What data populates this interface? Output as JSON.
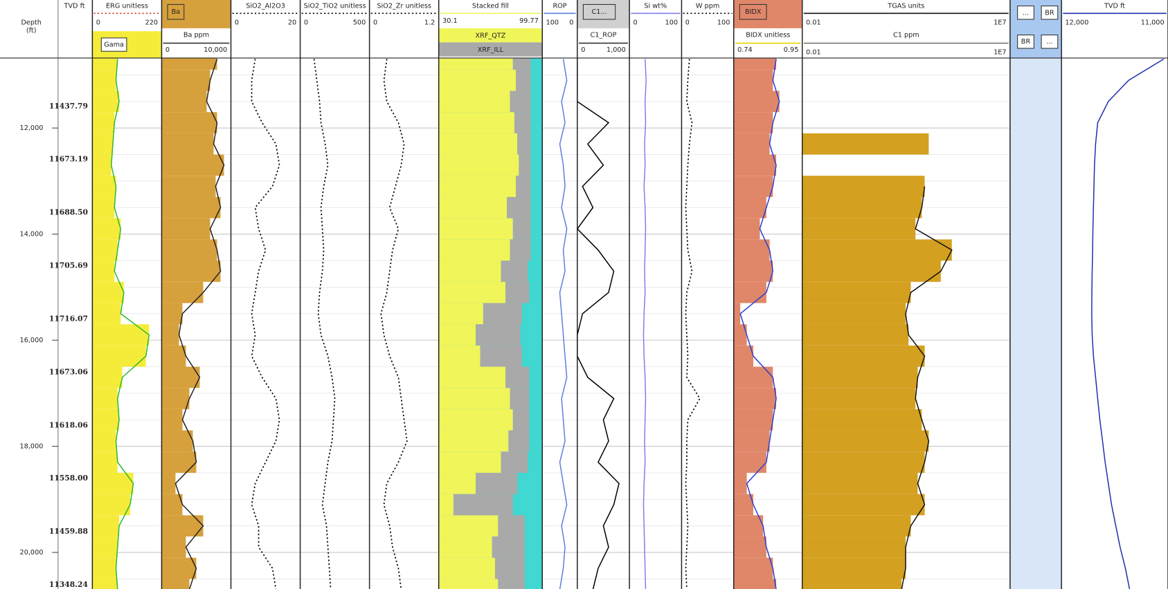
{
  "depth": {
    "title_lines": [
      "Depth",
      "(ft)"
    ],
    "ylim": [
      10680,
      20690
    ],
    "yticks": [
      {
        "value": 12000,
        "label": "12,000"
      },
      {
        "value": 14000,
        "label": "14,000"
      },
      {
        "value": 16000,
        "label": "16,000"
      },
      {
        "value": 18000,
        "label": "18,000"
      },
      {
        "value": 20000,
        "label": "20,000"
      }
    ],
    "minor_ticks": [
      11000,
      11500,
      12500,
      13000,
      13500,
      14500,
      15000,
      15500,
      16500,
      17000,
      17500,
      18500,
      19000,
      19500,
      20500
    ],
    "samples": [
      10700,
      11100,
      11500,
      11900,
      12300,
      12700,
      13100,
      13500,
      13900,
      14300,
      14700,
      15100,
      15500,
      15900,
      16300,
      16700,
      17100,
      17500,
      17900,
      18300,
      18700,
      19100,
      19500,
      19900,
      20300,
      20700
    ]
  },
  "tvd_labels": {
    "title": "TVD ft",
    "values": [
      "11437.79",
      "11673.19",
      "11688.50",
      "11705.69",
      "11716.07",
      "11673.06",
      "11618.06",
      "11558.00",
      "11459.88",
      "11348.24"
    ]
  },
  "tracks": [
    {
      "title": "ERG unitless",
      "legend_box": "Gama",
      "legend_color": "#f5ec3a",
      "xlim": [
        0,
        220
      ],
      "series": [
        {
          "name": "Gama",
          "color": "#2db82d",
          "fill": "#f5ec3a",
          "values": [
            80,
            75,
            85,
            70,
            65,
            60,
            75,
            70,
            90,
            80,
            70,
            100,
            90,
            180,
            170,
            95,
            80,
            85,
            75,
            80,
            130,
            120,
            85,
            80,
            75,
            80
          ]
        }
      ]
    },
    {
      "box": "Ba",
      "box_color": "#d6a03c",
      "subtitle": "Ba ppm",
      "xlim": [
        0,
        {
          "value": 10000,
          "label": "10,000"
        }
      ],
      "series": [
        {
          "color": "#222222",
          "fill": "#d6a03c",
          "values": [
            8000,
            7000,
            6500,
            8000,
            7500,
            9000,
            7800,
            8500,
            7000,
            8000,
            8500,
            6000,
            3000,
            2500,
            3500,
            5500,
            4000,
            3000,
            4500,
            5000,
            2000,
            3000,
            6000,
            3500,
            5000,
            4000
          ]
        }
      ]
    },
    {
      "title": "SiO2_Al2O3",
      "xlim": [
        0,
        20
      ],
      "series": [
        {
          "color": "#000000",
          "dash": true,
          "values": [
            7,
            6,
            6,
            9,
            13,
            14,
            12,
            7,
            8,
            10,
            8,
            7,
            6,
            7,
            6,
            9,
            13,
            14,
            13,
            10,
            7,
            6,
            8,
            8,
            12,
            13
          ]
        }
      ]
    },
    {
      "title": "SiO2_TiO2 unitless",
      "xlim": [
        0,
        500
      ],
      "series": [
        {
          "color": "#000000",
          "dash": true,
          "values": [
            100,
            120,
            140,
            150,
            180,
            200,
            170,
            150,
            160,
            170,
            160,
            140,
            130,
            150,
            200,
            230,
            250,
            240,
            230,
            200,
            180,
            160,
            190,
            200,
            210,
            220
          ]
        }
      ]
    },
    {
      "title": "SiO2_Zr unitless",
      "xlim": [
        0,
        1.2
      ],
      "series": [
        {
          "color": "#000000",
          "dash": true,
          "values": [
            0.3,
            0.25,
            0.3,
            0.5,
            0.6,
            0.55,
            0.45,
            0.35,
            0.5,
            0.4,
            0.35,
            0.3,
            0.2,
            0.25,
            0.35,
            0.5,
            0.55,
            0.6,
            0.65,
            0.5,
            0.3,
            0.25,
            0.35,
            0.4,
            0.5,
            0.55
          ]
        }
      ]
    },
    {
      "title": "Stacked fill",
      "xlim": [
        30.1,
        99.77
      ],
      "stack": true,
      "series": [
        {
          "name": "XRF_QTZ",
          "color": "#f0f55a",
          "values": [
            80,
            82,
            78,
            81,
            83,
            84,
            82,
            76,
            80,
            78,
            72,
            75,
            60,
            55,
            58,
            75,
            78,
            80,
            77,
            72,
            55,
            40,
            70,
            66,
            68,
            70
          ]
        },
        {
          "name": "XRF_ILL",
          "color": "#a9a9a9",
          "values": [
            12,
            10,
            14,
            11,
            9,
            8,
            10,
            16,
            12,
            14,
            18,
            16,
            26,
            30,
            28,
            16,
            13,
            11,
            14,
            18,
            28,
            40,
            18,
            22,
            20,
            18
          ]
        }
      ]
    },
    {
      "title": "ROP",
      "xlim": [
        100,
        0
      ],
      "series": [
        {
          "color": "#5b7fe0",
          "values": [
            40,
            30,
            45,
            35,
            50,
            40,
            35,
            45,
            30,
            40,
            35,
            50,
            45,
            40,
            35,
            30,
            45,
            40,
            35,
            50,
            40,
            30,
            45,
            35,
            40,
            50
          ]
        }
      ]
    },
    {
      "box": "C1...",
      "box_color": "#d0d0d0",
      "subtitle": "C1_ROP",
      "xlim": [
        0,
        {
          "value": 1000,
          "label": "1,000"
        }
      ],
      "series": [
        {
          "color": "#000000",
          "values": [
            0,
            0,
            0,
            600,
            200,
            500,
            100,
            300,
            0,
            400,
            700,
            600,
            100,
            0,
            0,
            200,
            700,
            500,
            600,
            400,
            800,
            700,
            500,
            600,
            400,
            300
          ]
        }
      ]
    },
    {
      "title": "Si  wt%",
      "xlim": [
        0,
        100
      ],
      "series": [
        {
          "color": "#7f7fef",
          "values": [
            30,
            32,
            30,
            31,
            29,
            30,
            28,
            30,
            31,
            30,
            29,
            30,
            28,
            27,
            28,
            30,
            31,
            30,
            29,
            30,
            28,
            27,
            28,
            29,
            30,
            31
          ]
        }
      ]
    },
    {
      "title": "W  ppm",
      "xlim": [
        0,
        100
      ],
      "series": [
        {
          "color": "#000000",
          "dash": true,
          "values": [
            15,
            12,
            10,
            20,
            15,
            12,
            10,
            8,
            10,
            12,
            20,
            10,
            8,
            10,
            12,
            10,
            35,
            12,
            10,
            10,
            8,
            10,
            12,
            10,
            8,
            10
          ]
        }
      ]
    },
    {
      "box": "BIDX",
      "box_color": "#e0876a",
      "subtitle": "BIDX unitless",
      "xlim": [
        0.74,
        0.95
      ],
      "series": [
        {
          "color": "#2b3fd0",
          "fill": "#e0876a",
          "values": [
            0.87,
            0.86,
            0.88,
            0.86,
            0.85,
            0.87,
            0.86,
            0.84,
            0.82,
            0.85,
            0.86,
            0.84,
            0.76,
            0.78,
            0.8,
            0.86,
            0.87,
            0.86,
            0.85,
            0.84,
            0.78,
            0.8,
            0.83,
            0.84,
            0.86,
            0.87
          ]
        }
      ]
    },
    {
      "title": "TGAS  units",
      "subtitle": "C1  ppm",
      "log": true,
      "xlim": [
        0.01,
        {
          "value": 10000000,
          "label": "1E7"
        }
      ],
      "sub_xlim": [
        0.01,
        {
          "value": 10000000,
          "label": "1E7"
        }
      ],
      "series": [
        {
          "color": "#111111",
          "fill": "#d4a020",
          "values": [
            null,
            null,
            null,
            null,
            3000,
            null,
            2000,
            1500,
            800,
            30000,
            10000,
            500,
            300,
            400,
            2000,
            1000,
            800,
            1500,
            3000,
            2000,
            1000,
            2000,
            500,
            300,
            300,
            200
          ]
        }
      ]
    },
    {
      "buttons": [
        "...",
        "BR",
        "BR",
        "..."
      ]
    },
    {
      "title": "TVD  ft",
      "xlim": [
        {
          "value": 12000,
          "label": "12,000"
        },
        {
          "value": 11000,
          "label": "11,000"
        }
      ],
      "series": [
        {
          "color": "#1f2fb0",
          "values": [
            11040,
            11370,
            11560,
            11660,
            11680,
            11690,
            11695,
            11700,
            11705,
            11708,
            11712,
            11715,
            11716,
            11712,
            11700,
            11680,
            11660,
            11640,
            11615,
            11590,
            11560,
            11530,
            11490,
            11450,
            11400,
            11360
          ]
        }
      ]
    }
  ]
}
